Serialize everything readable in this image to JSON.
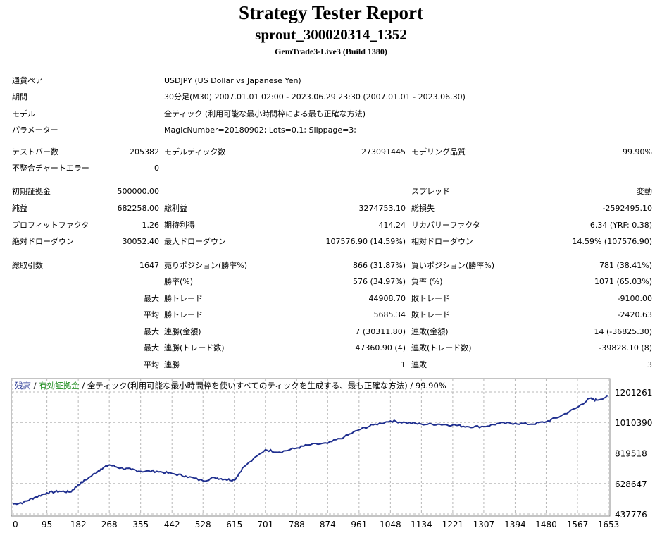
{
  "header": {
    "title": "Strategy Tester Report",
    "subtitle": "sprout_300020314_1352",
    "build": "GemTrade3-Live3 (Build 1380)"
  },
  "settings": {
    "pair_label": "通貨ペア",
    "pair_value": "USDJPY (US Dollar vs Japanese Yen)",
    "period_label": "期間",
    "period_value": "30分足(M30) 2007.01.01 02:00 - 2023.06.29 23:30 (2007.01.01 - 2023.06.30)",
    "model_label": "モデル",
    "model_value": "全ティック (利用可能な最小時間枠による最も正確な方法)",
    "params_label": "パラメーター",
    "params_value": "MagicNumber=20180902; Lots=0.1; Slippage=3;"
  },
  "stats": {
    "bars_label": "テストバー数",
    "bars_value": "205382",
    "ticks_label": "モデルティック数",
    "ticks_value": "273091445",
    "quality_label": "モデリング品質",
    "quality_value": "99.90%",
    "mismatch_label": "不整合チャートエラー",
    "mismatch_value": "0",
    "deposit_label": "初期証拠金",
    "deposit_value": "500000.00",
    "spread_label": "スプレッド",
    "spread_value": "変動",
    "net_label": "純益",
    "net_value": "682258.00",
    "gross_profit_label": "総利益",
    "gross_profit_value": "3274753.10",
    "gross_loss_label": "総損失",
    "gross_loss_value": "-2592495.10",
    "pf_label": "プロフィットファクタ",
    "pf_value": "1.26",
    "expected_label": "期待利得",
    "expected_value": "414.24",
    "recovery_label": "リカバリーファクタ",
    "recovery_value": "6.34 (YRF: 0.38)",
    "abs_dd_label": "絶対ドローダウン",
    "abs_dd_value": "30052.40",
    "max_dd_label": "最大ドローダウン",
    "max_dd_value": "107576.90 (14.59%)",
    "rel_dd_label": "相対ドローダウン",
    "rel_dd_value": "14.59% (107576.90)",
    "trades_label": "総取引数",
    "trades_value": "1647",
    "short_label": "売りポジション(勝率%)",
    "short_value": "866 (31.87%)",
    "long_label": "買いポジション(勝率%)",
    "long_value": "781 (38.41%)",
    "winrate_label": "勝率(%)",
    "winrate_value": "576 (34.97%)",
    "lossrate_label": "負率 (%)",
    "lossrate_value": "1071 (65.03%)",
    "max_word": "最大",
    "avg_word": "平均",
    "largest_win_label": "勝トレード",
    "largest_win_value": "44908.70",
    "largest_loss_label": "敗トレード",
    "largest_loss_value": "-9100.00",
    "avg_win_label": "勝トレード",
    "avg_win_value": "5685.34",
    "avg_loss_label": "敗トレード",
    "avg_loss_value": "-2420.63",
    "max_consec_wins_label": "連勝(金額)",
    "max_consec_wins_value": "7 (30311.80)",
    "max_consec_losses_label": "連敗(金額)",
    "max_consec_losses_value": "14 (-36825.30)",
    "max_consec_profit_label": "連勝(トレード数)",
    "max_consec_profit_value": "47360.90 (4)",
    "max_consec_loss_label": "連敗(トレード数)",
    "max_consec_loss_value": "-39828.10 (8)",
    "avg_consec_wins_label": "連勝",
    "avg_consec_wins_value": "1",
    "avg_consec_losses_label": "連敗",
    "avg_consec_losses_value": "3"
  },
  "chart_legend": {
    "balance": "残高",
    "sep1": " / ",
    "equity": "有効証拠金",
    "sep2": " / ",
    "rest": "全ティック(利用可能な最小時間枠を使いすべてのティックを生成する、最も正確な方法) / 99.90%"
  },
  "colors": {
    "balance_line": "#1f2f8f",
    "balance_legend": "#1f2f8f",
    "equity_legend": "#1a8a1a",
    "grid": "#b8b8b8"
  },
  "chart_data": {
    "type": "line",
    "title": "",
    "xlabel": "",
    "ylabel": "",
    "x_ticks": [
      "0",
      "95",
      "182",
      "268",
      "355",
      "442",
      "528",
      "615",
      "701",
      "788",
      "874",
      "961",
      "1048",
      "1134",
      "1221",
      "1307",
      "1394",
      "1480",
      "1567",
      "1653"
    ],
    "y_ticks": [
      "1201261",
      "1010390",
      "819518",
      "628647",
      "437776"
    ],
    "xlim": [
      0,
      1653
    ],
    "ylim": [
      437776,
      1201261
    ],
    "grid": true,
    "series": [
      {
        "name": "残高",
        "x": [
          0,
          30,
          60,
          95,
          130,
          160,
          182,
          215,
          245,
          268,
          300,
          330,
          355,
          400,
          442,
          480,
          528,
          560,
          590,
          615,
          640,
          701,
          740,
          788,
          820,
          874,
          920,
          961,
          1000,
          1048,
          1090,
          1134,
          1180,
          1221,
          1260,
          1307,
          1350,
          1394,
          1440,
          1480,
          1520,
          1567,
          1600,
          1620,
          1653
        ],
        "y": [
          500000,
          510000,
          540000,
          570000,
          580000,
          575000,
          620000,
          670000,
          720000,
          745000,
          725000,
          715000,
          705000,
          705000,
          690000,
          675000,
          645000,
          665000,
          655000,
          650000,
          730000,
          840000,
          825000,
          850000,
          870000,
          880000,
          920000,
          965000,
          995000,
          1020000,
          1010000,
          1000000,
          1000000,
          995000,
          985000,
          985000,
          1005000,
          1005000,
          1000000,
          1015000,
          1050000,
          1105000,
          1160000,
          1150000,
          1175000
        ]
      }
    ]
  }
}
